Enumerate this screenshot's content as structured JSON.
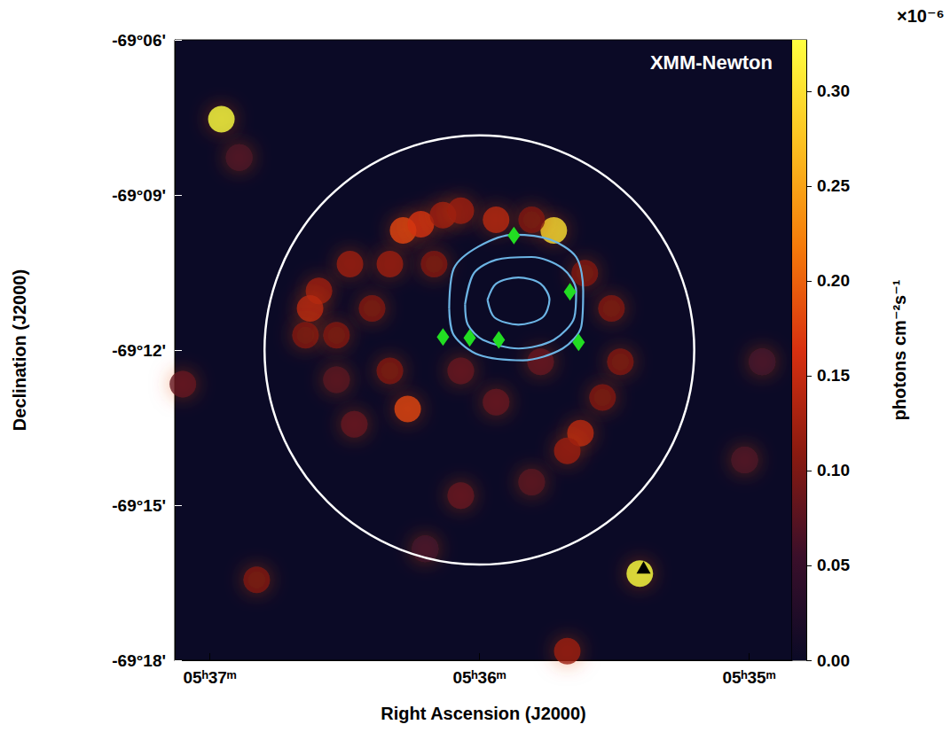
{
  "chart_data": {
    "type": "sky_map",
    "annotation": "XMM-Newton",
    "x_label": "Right Ascension (J2000)",
    "y_label": "Declination (J2000)",
    "xlim": [
      37.13,
      34.84
    ],
    "xticks": [
      {
        "value": 37,
        "label": "05ʰ37ᵐ"
      },
      {
        "value": 36,
        "label": "05ʰ36ᵐ"
      },
      {
        "value": 35,
        "label": "05ʰ35ᵐ"
      }
    ],
    "ylim": [
      -69.3,
      -69.1
    ],
    "yticks": [
      {
        "value": -69.3,
        "label": "-69°18'"
      },
      {
        "value": -69.25,
        "label": "-69°15'"
      },
      {
        "value": -69.2,
        "label": "-69°12'"
      },
      {
        "value": -69.15,
        "label": "-69°09'"
      },
      {
        "value": -69.1,
        "label": "-69°06'"
      }
    ],
    "colorbar": {
      "label": "photons cm⁻²s⁻¹",
      "multiplier": "×10⁻⁶",
      "range": [
        0,
        0.327
      ],
      "ticks": [
        {
          "value": 0,
          "label": "0.00"
        },
        {
          "value": 0.05,
          "label": "0.05"
        },
        {
          "value": 0.1,
          "label": "0.10"
        },
        {
          "value": 0.15,
          "label": "0.15"
        },
        {
          "value": 0.2,
          "label": "0.20"
        },
        {
          "value": 0.25,
          "label": "0.25"
        },
        {
          "value": 0.3,
          "label": "0.30"
        }
      ],
      "colors": [
        "#0b0a26",
        "#3a0f2a",
        "#8a1a10",
        "#d83010",
        "#f57a0a",
        "#fcc020",
        "#ffff40"
      ]
    },
    "emission": [
      [
        36.957,
        -69.1256,
        0.33
      ],
      [
        35.405,
        -69.2721,
        0.34
      ],
      [
        35.724,
        -69.1614,
        0.3
      ],
      [
        36.283,
        -69.1614,
        0.18
      ],
      [
        36.217,
        -69.1594,
        0.16
      ],
      [
        36.135,
        -69.1565,
        0.12
      ],
      [
        36.332,
        -69.1723,
        0.12
      ],
      [
        36.48,
        -69.1723,
        0.12
      ],
      [
        36.595,
        -69.1809,
        0.12
      ],
      [
        36.628,
        -69.1866,
        0.14
      ],
      [
        36.645,
        -69.1952,
        0.1
      ],
      [
        36.53,
        -69.1952,
        0.1
      ],
      [
        36.398,
        -69.1866,
        0.1
      ],
      [
        36.168,
        -69.1723,
        0.1
      ],
      [
        36.266,
        -69.219,
        0.18
      ],
      [
        36.332,
        -69.2067,
        0.1
      ],
      [
        36.069,
        -69.1551,
        0.12
      ],
      [
        35.938,
        -69.158,
        0.14
      ],
      [
        35.806,
        -69.158,
        0.1
      ],
      [
        35.609,
        -69.1752,
        0.1
      ],
      [
        35.51,
        -69.1866,
        0.1
      ],
      [
        35.477,
        -69.2038,
        0.1
      ],
      [
        35.543,
        -69.2153,
        0.1
      ],
      [
        35.625,
        -69.2268,
        0.14
      ],
      [
        35.674,
        -69.2325,
        0.12
      ],
      [
        35.938,
        -69.2168,
        0.08
      ],
      [
        36.069,
        -69.2067,
        0.08
      ],
      [
        35.773,
        -69.2038,
        0.08
      ],
      [
        36.069,
        -69.2469,
        0.08
      ],
      [
        35.806,
        -69.2426,
        0.07
      ],
      [
        36.464,
        -69.2239,
        0.08
      ],
      [
        36.53,
        -69.2096,
        0.07
      ],
      [
        36.826,
        -69.2741,
        0.1
      ],
      [
        35.674,
        -69.2971,
        0.12
      ],
      [
        37.1,
        -69.211,
        0.08
      ],
      [
        36.891,
        -69.1379,
        0.06
      ],
      [
        35.016,
        -69.2354,
        0.06
      ],
      [
        34.951,
        -69.2038,
        0.05
      ],
      [
        36.201,
        -69.2641,
        0.05
      ]
    ],
    "circle": {
      "ra": 36.0,
      "dec": -69.2,
      "half_width_ra": 0.862,
      "half_height_dec": 0.0692,
      "color": "#ffffff"
    },
    "contours": {
      "color": "#6cb4e4",
      "lines": [
        [
          [
            35.97,
            -69.1838
          ],
          [
            35.938,
            -69.1786
          ],
          [
            35.855,
            -69.1766
          ],
          [
            35.773,
            -69.1786
          ],
          [
            35.74,
            -69.1838
          ],
          [
            35.766,
            -69.1895
          ],
          [
            35.855,
            -69.1918
          ],
          [
            35.944,
            -69.1895
          ]
        ],
        [
          [
            36.053,
            -69.1852
          ],
          [
            36.02,
            -69.1752
          ],
          [
            35.938,
            -69.1709
          ],
          [
            35.806,
            -69.17
          ],
          [
            35.691,
            -69.1737
          ],
          [
            35.641,
            -69.1809
          ],
          [
            35.648,
            -69.1895
          ],
          [
            35.724,
            -69.1967
          ],
          [
            35.855,
            -69.1995
          ],
          [
            35.987,
            -69.1967
          ],
          [
            36.043,
            -69.1918
          ]
        ],
        [
          [
            36.112,
            -69.1866
          ],
          [
            36.095,
            -69.1737
          ],
          [
            36.003,
            -69.1666
          ],
          [
            35.872,
            -69.1628
          ],
          [
            35.74,
            -69.1643
          ],
          [
            35.641,
            -69.17
          ],
          [
            35.615,
            -69.1809
          ],
          [
            35.622,
            -69.1924
          ],
          [
            35.691,
            -69.1995
          ],
          [
            35.839,
            -69.2033
          ],
          [
            36.003,
            -69.2015
          ],
          [
            36.095,
            -69.1952
          ]
        ]
      ]
    },
    "markers": [
      {
        "marker": "diamond",
        "color": "#22dd22",
        "points": [
          [
            35.872,
            -69.1631
          ],
          [
            35.664,
            -69.1812
          ],
          [
            36.135,
            -69.1958
          ],
          [
            36.036,
            -69.1961
          ],
          [
            35.928,
            -69.1967
          ],
          [
            35.632,
            -69.1975
          ]
        ]
      },
      {
        "marker": "triangle",
        "color": "#000000",
        "points": [
          [
            35.391,
            -69.2701
          ]
        ]
      }
    ]
  }
}
